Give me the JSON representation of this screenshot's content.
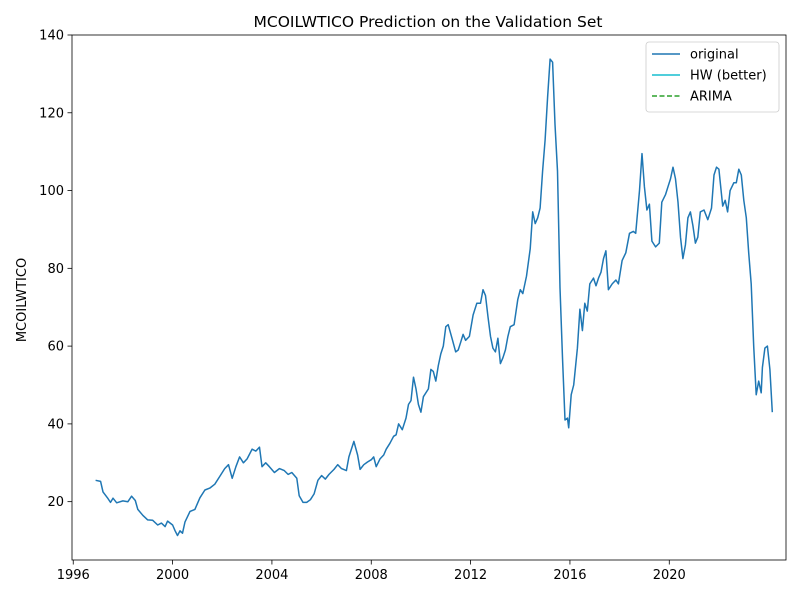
{
  "chart_data": {
    "type": "line",
    "title": "MCOILWTICO Prediction on the Validation Set",
    "xlabel": "",
    "ylabel": "MCOILWTICO",
    "xlim": [
      1995.95,
      2024.7
    ],
    "ylim": [
      5,
      140
    ],
    "xticks": [
      1996,
      2000,
      2004,
      2008,
      2012,
      2016,
      2020
    ],
    "yticks": [
      20,
      40,
      60,
      80,
      100,
      120,
      140
    ],
    "grid": false,
    "legend_position": "top-right",
    "series": [
      {
        "name": "original",
        "color": "#1f77b4",
        "style": "solid",
        "points": [
          [
            1996.9,
            25.5
          ],
          [
            1997.1,
            25.2
          ],
          [
            1997.2,
            22.5
          ],
          [
            1997.4,
            20.8
          ],
          [
            1997.5,
            19.8
          ],
          [
            1997.6,
            20.9
          ],
          [
            1997.75,
            19.7
          ],
          [
            1998.0,
            20.2
          ],
          [
            1998.2,
            20.0
          ],
          [
            1998.35,
            21.4
          ],
          [
            1998.5,
            20.3
          ],
          [
            1998.6,
            18.0
          ],
          [
            1998.8,
            16.5
          ],
          [
            1999.0,
            15.3
          ],
          [
            1999.2,
            15.2
          ],
          [
            1999.4,
            14.0
          ],
          [
            1999.55,
            14.5
          ],
          [
            1999.7,
            13.6
          ],
          [
            1999.8,
            15.0
          ],
          [
            2000.0,
            14.0
          ],
          [
            2000.1,
            12.5
          ],
          [
            2000.2,
            11.3
          ],
          [
            2000.3,
            12.5
          ],
          [
            2000.4,
            11.9
          ],
          [
            2000.5,
            14.8
          ],
          [
            2000.7,
            17.5
          ],
          [
            2000.9,
            18.0
          ],
          [
            2001.1,
            21.0
          ],
          [
            2001.3,
            23.0
          ],
          [
            2001.5,
            23.5
          ],
          [
            2001.7,
            24.5
          ],
          [
            2001.9,
            26.5
          ],
          [
            2002.1,
            28.5
          ],
          [
            2002.25,
            29.5
          ],
          [
            2002.4,
            26.0
          ],
          [
            2002.55,
            29.0
          ],
          [
            2002.7,
            31.5
          ],
          [
            2002.85,
            30.0
          ],
          [
            2003.0,
            31.0
          ],
          [
            2003.2,
            33.5
          ],
          [
            2003.35,
            33.0
          ],
          [
            2003.5,
            34.0
          ],
          [
            2003.6,
            29.0
          ],
          [
            2003.75,
            30.0
          ],
          [
            2003.9,
            29.0
          ],
          [
            2004.1,
            27.5
          ],
          [
            2004.3,
            28.5
          ],
          [
            2004.5,
            28.0
          ],
          [
            2004.65,
            27.0
          ],
          [
            2004.8,
            27.5
          ],
          [
            2005.0,
            26.0
          ],
          [
            2005.1,
            21.5
          ],
          [
            2005.25,
            19.8
          ],
          [
            2005.4,
            19.8
          ],
          [
            2005.55,
            20.5
          ],
          [
            2005.7,
            22.0
          ],
          [
            2005.85,
            25.5
          ],
          [
            2006.0,
            26.7
          ],
          [
            2006.15,
            25.8
          ],
          [
            2006.3,
            27.0
          ],
          [
            2006.5,
            28.3
          ],
          [
            2006.65,
            29.5
          ],
          [
            2006.8,
            28.5
          ],
          [
            2007.0,
            28.0
          ],
          [
            2007.1,
            31.5
          ],
          [
            2007.3,
            35.5
          ],
          [
            2007.45,
            32.0
          ],
          [
            2007.55,
            28.3
          ],
          [
            2007.7,
            29.5
          ],
          [
            2007.85,
            30.2
          ],
          [
            2008.0,
            30.8
          ],
          [
            2008.1,
            31.5
          ],
          [
            2008.2,
            29.0
          ],
          [
            2008.35,
            31.0
          ],
          [
            2008.5,
            32.0
          ],
          [
            2008.6,
            33.5
          ],
          [
            2008.75,
            35.0
          ],
          [
            2008.9,
            36.8
          ],
          [
            2009.0,
            37.2
          ],
          [
            2009.1,
            40.0
          ],
          [
            2009.25,
            38.5
          ],
          [
            2009.4,
            41.5
          ],
          [
            2009.5,
            45.0
          ],
          [
            2009.6,
            46.0
          ],
          [
            2009.7,
            52.0
          ],
          [
            2009.8,
            49.0
          ],
          [
            2009.9,
            45.0
          ],
          [
            2010.0,
            43.0
          ],
          [
            2010.1,
            47.0
          ],
          [
            2010.3,
            49.0
          ],
          [
            2010.4,
            54.0
          ],
          [
            2010.5,
            53.5
          ],
          [
            2010.6,
            51.0
          ],
          [
            2010.7,
            55.0
          ],
          [
            2010.8,
            58.0
          ],
          [
            2010.9,
            60.0
          ],
          [
            2011.0,
            65.0
          ],
          [
            2011.1,
            65.5
          ],
          [
            2011.25,
            62.0
          ],
          [
            2011.4,
            58.5
          ],
          [
            2011.5,
            59.0
          ],
          [
            2011.6,
            61.0
          ],
          [
            2011.7,
            63.0
          ],
          [
            2011.8,
            61.5
          ],
          [
            2011.95,
            62.5
          ],
          [
            2012.1,
            68.0
          ],
          [
            2012.25,
            71.0
          ],
          [
            2012.4,
            71.0
          ],
          [
            2012.5,
            74.5
          ],
          [
            2012.6,
            73.0
          ],
          [
            2012.7,
            67.5
          ],
          [
            2012.8,
            62.5
          ],
          [
            2012.9,
            59.5
          ],
          [
            2013.0,
            58.5
          ],
          [
            2013.1,
            62.0
          ],
          [
            2013.2,
            55.5
          ],
          [
            2013.3,
            57.0
          ],
          [
            2013.4,
            59.0
          ],
          [
            2013.5,
            62.5
          ],
          [
            2013.6,
            65.0
          ],
          [
            2013.75,
            65.5
          ],
          [
            2013.9,
            72.0
          ],
          [
            2014.0,
            74.5
          ],
          [
            2014.1,
            73.5
          ],
          [
            2014.25,
            78.0
          ],
          [
            2014.4,
            85.0
          ],
          [
            2014.5,
            94.5
          ],
          [
            2014.6,
            91.5
          ],
          [
            2014.7,
            93.0
          ],
          [
            2014.8,
            95.5
          ],
          [
            2014.9,
            105.0
          ],
          [
            2015.0,
            113.0
          ],
          [
            2015.1,
            124.0
          ],
          [
            2015.2,
            133.8
          ],
          [
            2015.3,
            133.0
          ],
          [
            2015.4,
            117.0
          ],
          [
            2015.5,
            105.0
          ],
          [
            2015.6,
            75.0
          ],
          [
            2015.7,
            57.0
          ],
          [
            2015.8,
            41.0
          ],
          [
            2015.9,
            41.5
          ],
          [
            2015.95,
            39.0
          ],
          [
            2016.05,
            47.5
          ],
          [
            2016.15,
            50.0
          ],
          [
            2016.3,
            59.5
          ],
          [
            2016.4,
            69.5
          ],
          [
            2016.5,
            64.0
          ],
          [
            2016.6,
            71.0
          ],
          [
            2016.7,
            69.0
          ],
          [
            2016.8,
            76.0
          ],
          [
            2016.95,
            77.5
          ],
          [
            2017.05,
            75.5
          ],
          [
            2017.15,
            77.5
          ],
          [
            2017.25,
            79.0
          ],
          [
            2017.35,
            82.5
          ],
          [
            2017.45,
            84.5
          ],
          [
            2017.55,
            74.5
          ],
          [
            2017.7,
            76.0
          ],
          [
            2017.85,
            77.0
          ],
          [
            2017.95,
            76.0
          ],
          [
            2018.1,
            82.0
          ],
          [
            2018.25,
            84.0
          ],
          [
            2018.4,
            89.0
          ],
          [
            2018.55,
            89.5
          ],
          [
            2018.65,
            89.0
          ],
          [
            2018.8,
            100.0
          ],
          [
            2018.9,
            109.5
          ],
          [
            2019.0,
            101.0
          ],
          [
            2019.1,
            95.0
          ],
          [
            2019.2,
            96.5
          ],
          [
            2019.3,
            87.0
          ],
          [
            2019.45,
            85.5
          ],
          [
            2019.6,
            86.5
          ],
          [
            2019.7,
            97.0
          ],
          [
            2019.85,
            99.0
          ],
          [
            2019.95,
            101.0
          ],
          [
            2020.05,
            103.0
          ],
          [
            2020.15,
            106.0
          ],
          [
            2020.25,
            103.0
          ],
          [
            2020.35,
            97.0
          ],
          [
            2020.45,
            88.0
          ],
          [
            2020.55,
            82.5
          ],
          [
            2020.65,
            86.0
          ],
          [
            2020.75,
            93.0
          ],
          [
            2020.85,
            94.5
          ],
          [
            2020.95,
            91.0
          ],
          [
            2021.05,
            86.5
          ],
          [
            2021.15,
            88.0
          ],
          [
            2021.25,
            94.5
          ],
          [
            2021.4,
            95.0
          ],
          [
            2021.55,
            92.5
          ],
          [
            2021.7,
            95.5
          ],
          [
            2021.8,
            104.0
          ],
          [
            2021.9,
            106.0
          ],
          [
            2022.0,
            105.5
          ],
          [
            2022.15,
            96.0
          ],
          [
            2022.25,
            97.5
          ],
          [
            2022.35,
            94.5
          ],
          [
            2022.45,
            100.0
          ],
          [
            2022.6,
            102.0
          ],
          [
            2022.7,
            102.0
          ],
          [
            2022.8,
            105.5
          ],
          [
            2022.9,
            104.0
          ],
          [
            2023.0,
            97.5
          ],
          [
            2023.1,
            93.0
          ],
          [
            2023.2,
            84.0
          ],
          [
            2023.3,
            76.0
          ],
          [
            2023.4,
            60.0
          ],
          [
            2023.5,
            47.5
          ],
          [
            2023.6,
            51.0
          ],
          [
            2023.7,
            48.0
          ],
          [
            2023.75,
            54.5
          ],
          [
            2023.85,
            59.5
          ],
          [
            2023.95,
            60.0
          ],
          [
            2024.05,
            54.0
          ],
          [
            2024.15,
            43.0
          ]
        ]
      },
      {
        "name": "HW (better)",
        "color": "#17becf",
        "style": "solid",
        "points": []
      },
      {
        "name": "ARIMA",
        "color": "#2ca02c",
        "style": "dashed",
        "points": []
      }
    ]
  }
}
